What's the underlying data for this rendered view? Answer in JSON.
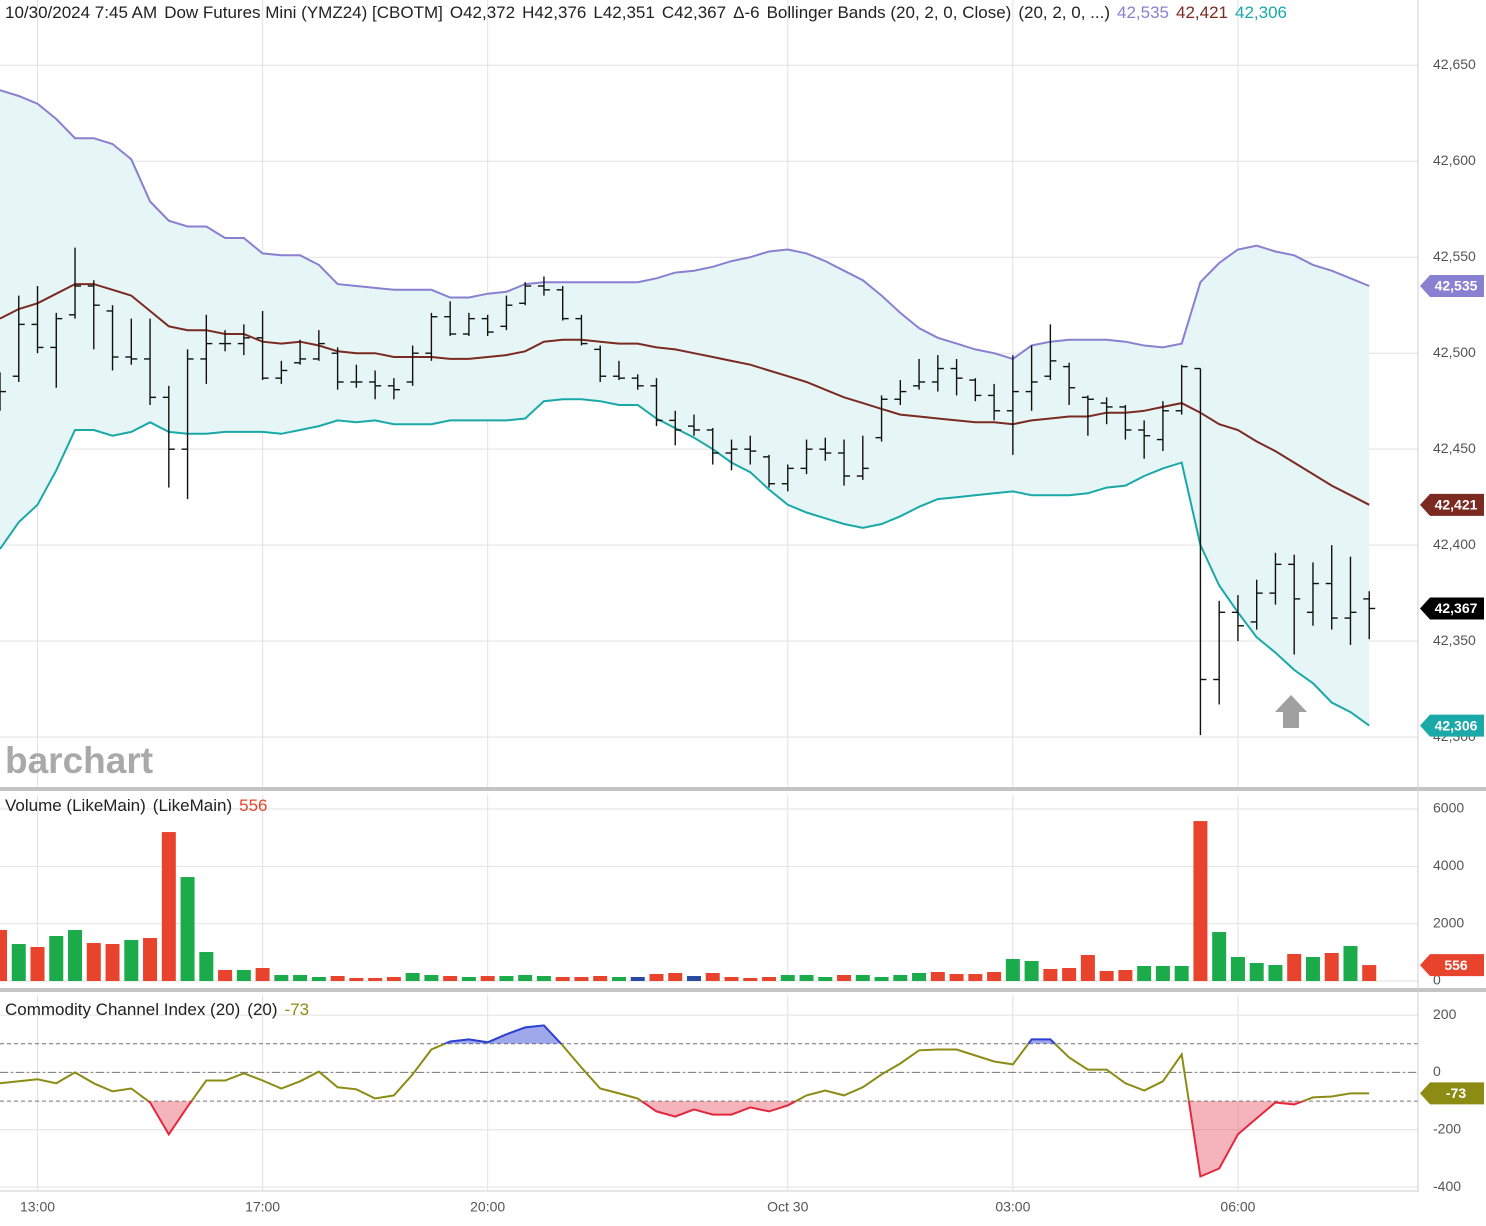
{
  "chart_data": [
    {
      "type": "ohlc",
      "title": "10/30/2024 7:45 AM",
      "symbol": "Dow Futures Mini (YMZ24) [CBOTM]",
      "quote": [
        "O42,372",
        "H42,376",
        "L42,351",
        "C42,367",
        "Δ-6"
      ],
      "study": "Bollinger Bands (20, 2, 0, Close)",
      "study_params": "(20, 2, 0, ...)",
      "watermark": "barchart",
      "bar_color": "#111111",
      "close_label": "42,367",
      "close_color": "#000000",
      "xlim": [
        0,
        75.6
      ],
      "xticks": [
        {
          "value": 2,
          "label": "13:00"
        },
        {
          "value": 14,
          "label": "17:00"
        },
        {
          "value": 26,
          "label": "20:00"
        },
        {
          "value": 42,
          "label": "Oct 30"
        },
        {
          "value": 54,
          "label": "03:00"
        },
        {
          "value": 66,
          "label": "06:00"
        }
      ],
      "ylim": [
        42274,
        42684
      ],
      "yticks": [
        {
          "value": 42300,
          "label": "42,300"
        },
        {
          "value": 42350,
          "label": "42,350"
        },
        {
          "value": 42400,
          "label": "42,400"
        },
        {
          "value": 42450,
          "label": "42,450"
        },
        {
          "value": 42500,
          "label": "42,500"
        },
        {
          "value": 42550,
          "label": "42,550"
        },
        {
          "value": 42600,
          "label": "42,600"
        },
        {
          "value": 42650,
          "label": "42,650"
        }
      ],
      "grid": true,
      "band_fill": "#e6f5f5",
      "open": [
        42482,
        42488,
        42515,
        42503,
        42520,
        42535,
        42522,
        42498,
        42497,
        42477,
        42450,
        42497,
        42505,
        42505,
        42508,
        42487,
        42495,
        42497,
        42500,
        42485,
        42485,
        42483,
        42485,
        42500,
        42519,
        42510,
        42518,
        42514,
        42526,
        42535,
        42533,
        42518,
        42502,
        42488,
        42487,
        42483,
        42465,
        42462,
        42460,
        42448,
        42450,
        42446,
        42432,
        42440,
        42450,
        42448,
        42436,
        42456,
        42476,
        42483,
        42485,
        42492,
        42486,
        42478,
        42470,
        42480,
        42488,
        42493,
        42477,
        42474,
        42472,
        42460,
        42455,
        42470,
        42492,
        42330,
        42365,
        42360,
        42375,
        42390,
        42365,
        42380,
        42362,
        42372
      ],
      "high": [
        42490,
        42530,
        42535,
        42521,
        42555,
        42538,
        42525,
        42518,
        42518,
        42483,
        42502,
        42520,
        42512,
        42515,
        42522,
        42496,
        42507,
        42512,
        42503,
        42494,
        42491,
        42487,
        42504,
        42521,
        42527,
        42521,
        42520,
        42530,
        42537,
        42540,
        42535,
        42520,
        42504,
        42496,
        42489,
        42487,
        42470,
        42468,
        42461,
        42455,
        42457,
        42447,
        42442,
        42455,
        42456,
        42455,
        42457,
        42478,
        42486,
        42497,
        42499,
        42497,
        42487,
        42484,
        42499,
        42504,
        42515,
        42495,
        42478,
        42477,
        42473,
        42465,
        42475,
        42494,
        42492,
        42371,
        42374,
        42382,
        42396,
        42395,
        42391,
        42400,
        42394,
        42376
      ],
      "low": [
        42470,
        42485,
        42500,
        42482,
        42518,
        42502,
        42491,
        42494,
        42473,
        42430,
        42424,
        42484,
        42501,
        42499,
        42486,
        42484,
        42494,
        42496,
        42481,
        42482,
        42476,
        42476,
        42483,
        42496,
        42509,
        42509,
        42509,
        42512,
        42525,
        42530,
        42517,
        42504,
        42485,
        42486,
        42481,
        42462,
        42452,
        42457,
        42442,
        42439,
        42442,
        42430,
        42428,
        42437,
        42444,
        42431,
        42434,
        42454,
        42473,
        42481,
        42480,
        42478,
        42475,
        42465,
        42447,
        42470,
        42486,
        42473,
        42457,
        42463,
        42455,
        42445,
        42449,
        42468,
        42301,
        42317,
        42350,
        42356,
        42369,
        42343,
        42358,
        42356,
        42348,
        42351
      ],
      "close": [
        42480,
        42515,
        42503,
        42518,
        42535,
        42525,
        42498,
        42497,
        42477,
        42450,
        42497,
        42505,
        42505,
        42508,
        42487,
        42491,
        42497,
        42505,
        42485,
        42485,
        42483,
        42481,
        42500,
        42519,
        42510,
        42518,
        42511,
        42525,
        42535,
        42533,
        42518,
        42505,
        42488,
        42487,
        42483,
        42465,
        42460,
        42460,
        42448,
        42450,
        42449,
        42432,
        42440,
        42450,
        42448,
        42436,
        42440,
        42476,
        42480,
        42485,
        42492,
        42487,
        42478,
        42470,
        42480,
        42485,
        42496,
        42482,
        42476,
        42472,
        42460,
        42457,
        42470,
        42493,
        42330,
        42365,
        42358,
        42375,
        42390,
        42372,
        42380,
        42362,
        42365,
        42367
      ],
      "series": [
        {
          "color": "#8a80d2",
          "last_label": "42,535",
          "values": [
            42637,
            42634,
            42630,
            42622,
            42612,
            42612,
            42609,
            42601,
            42579,
            42569,
            42566,
            42566,
            42560,
            42560,
            42552,
            42551,
            42551,
            42546,
            42536,
            42535,
            42534,
            42533,
            42533,
            42533,
            42529,
            42529,
            42531,
            42532,
            42536,
            42537,
            42537,
            42537,
            42537,
            42537,
            42537,
            42539,
            42542,
            42543,
            42545,
            42548,
            42550,
            42553,
            42554,
            42552,
            42548,
            42543,
            42538,
            42530,
            42521,
            42513,
            42508,
            42505,
            42502,
            42500,
            42497,
            42504,
            42506,
            42507,
            42507,
            42507,
            42506,
            42504,
            42503,
            42505,
            42537,
            42547,
            42554,
            42556,
            42553,
            42551,
            42546,
            42543,
            42539,
            42535
          ]
        },
        {
          "color": "#7b2a22",
          "last_label": "42,421",
          "values": [
            42518,
            42523,
            42526,
            42531,
            42536,
            42536,
            42533,
            42530,
            42522,
            42514,
            42512,
            42512,
            42510,
            42510,
            42506,
            42505,
            42506,
            42504,
            42501,
            42500,
            42500,
            42498,
            42498,
            42498,
            42497,
            42497,
            42498,
            42499,
            42501,
            42506,
            42507,
            42507,
            42506,
            42505,
            42505,
            42503,
            42502,
            42500,
            42498,
            42496,
            42494,
            42491,
            42488,
            42485,
            42481,
            42477,
            42474,
            42471,
            42468,
            42467,
            42466,
            42465,
            42464,
            42464,
            42463,
            42465,
            42466,
            42467,
            42467,
            42469,
            42469,
            42470,
            42472,
            42474,
            42469,
            42463,
            42460,
            42454,
            42449,
            42443,
            42437,
            42431,
            42426,
            42421
          ]
        },
        {
          "color": "#1aa8a8",
          "last_label": "42,306",
          "values": [
            42398,
            42412,
            42421,
            42439,
            42460,
            42460,
            42457,
            42459,
            42464,
            42459,
            42458,
            42458,
            42459,
            42459,
            42459,
            42458,
            42460,
            42462,
            42465,
            42464,
            42465,
            42463,
            42463,
            42463,
            42465,
            42465,
            42465,
            42465,
            42466,
            42475,
            42476,
            42476,
            42475,
            42473,
            42473,
            42466,
            42461,
            42456,
            42450,
            42443,
            42438,
            42429,
            42421,
            42417,
            42414,
            42411,
            42409,
            42411,
            42415,
            42420,
            42424,
            42425,
            42426,
            42427,
            42428,
            42426,
            42426,
            42426,
            42427,
            42430,
            42431,
            42436,
            42440,
            42443,
            42400,
            42379,
            42365,
            42352,
            42344,
            42335,
            42328,
            42318,
            42313,
            42306
          ]
        }
      ]
    },
    {
      "type": "bar",
      "title": "Volume (LikeMain)",
      "study_params": "(LikeMain)",
      "ylim": [
        0,
        6490
      ],
      "yticks": [
        0,
        2000,
        4000,
        6000
      ],
      "grid": true,
      "values": [
        1780,
        1290,
        1186,
        1570,
        1780,
        1325,
        1290,
        1430,
        1500,
        5197,
        3627,
        1011,
        384,
        384,
        453,
        209,
        209,
        140,
        174,
        105,
        105,
        140,
        279,
        209,
        174,
        140,
        174,
        174,
        209,
        174,
        140,
        140,
        174,
        140,
        140,
        244,
        279,
        174,
        279,
        140,
        105,
        140,
        209,
        209,
        140,
        209,
        209,
        140,
        209,
        279,
        314,
        244,
        244,
        314,
        767,
        698,
        419,
        453,
        907,
        349,
        384,
        523,
        523,
        523,
        5581,
        1709,
        837,
        628,
        558,
        942,
        837,
        977,
        1221,
        556
      ],
      "colors": [
        "#e8432d",
        "#1bab4b",
        "#e8432d",
        "#1bab4b",
        "#1bab4b",
        "#e8432d",
        "#e8432d",
        "#1bab4b",
        "#e8432d",
        "#e8432d",
        "#1bab4b",
        "#1bab4b",
        "#e8432d",
        "#1bab4b",
        "#e8432d",
        "#1bab4b",
        "#1bab4b",
        "#1bab4b",
        "#e8432d",
        "#e8432d",
        "#e8432d",
        "#e8432d",
        "#1bab4b",
        "#1bab4b",
        "#e8432d",
        "#1bab4b",
        "#e8432d",
        "#1bab4b",
        "#1bab4b",
        "#1bab4b",
        "#e8432d",
        "#e8432d",
        "#e8432d",
        "#1bab4b",
        "#2a4aa0",
        "#e8432d",
        "#e8432d",
        "#2a4aa0",
        "#e8432d",
        "#e8432d",
        "#e8432d",
        "#e8432d",
        "#1bab4b",
        "#1bab4b",
        "#1bab4b",
        "#e8432d",
        "#1bab4b",
        "#1bab4b",
        "#1bab4b",
        "#1bab4b",
        "#e8432d",
        "#e8432d",
        "#e8432d",
        "#e8432d",
        "#1bab4b",
        "#1bab4b",
        "#e8432d",
        "#e8432d",
        "#e8432d",
        "#e8432d",
        "#e8432d",
        "#1bab4b",
        "#1bab4b",
        "#1bab4b",
        "#e8432d",
        "#1bab4b",
        "#1bab4b",
        "#1bab4b",
        "#1bab4b",
        "#e8432d",
        "#1bab4b",
        "#e8432d",
        "#1bab4b",
        "#e8432d"
      ]
    },
    {
      "type": "line",
      "title": "Commodity Channel Index (20)",
      "study_params": "(20)",
      "ylim": [
        -410,
        270
      ],
      "yticks": [
        -400,
        -200,
        0,
        200
      ],
      "grid": true,
      "levels": [
        100,
        0,
        -100
      ],
      "overbought": 100,
      "oversold": -100,
      "overbought_color": "#2b3fd1",
      "oversold_color": "#e3283e",
      "series": [
        {
          "color": "#8c8c14",
          "values": [
            -38,
            -31,
            -24,
            -38,
            0,
            -38,
            -66,
            -56,
            -105,
            -216,
            -119,
            -28,
            -28,
            -3,
            -28,
            -56,
            -31,
            3,
            -52,
            -59,
            -91,
            -80,
            -7,
            80,
            108,
            115,
            105,
            133,
            157,
            164,
            94,
            17,
            -56,
            -73,
            -91,
            -136,
            -154,
            -129,
            -147,
            -147,
            -122,
            -136,
            -115,
            -80,
            -63,
            -80,
            -52,
            -7,
            31,
            77,
            80,
            80,
            59,
            38,
            28,
            115,
            115,
            52,
            10,
            10,
            -38,
            -63,
            -31,
            63,
            -363,
            -335,
            -216,
            -160,
            -105,
            -112,
            -87,
            -84,
            -73,
            -73
          ]
        }
      ]
    }
  ]
}
